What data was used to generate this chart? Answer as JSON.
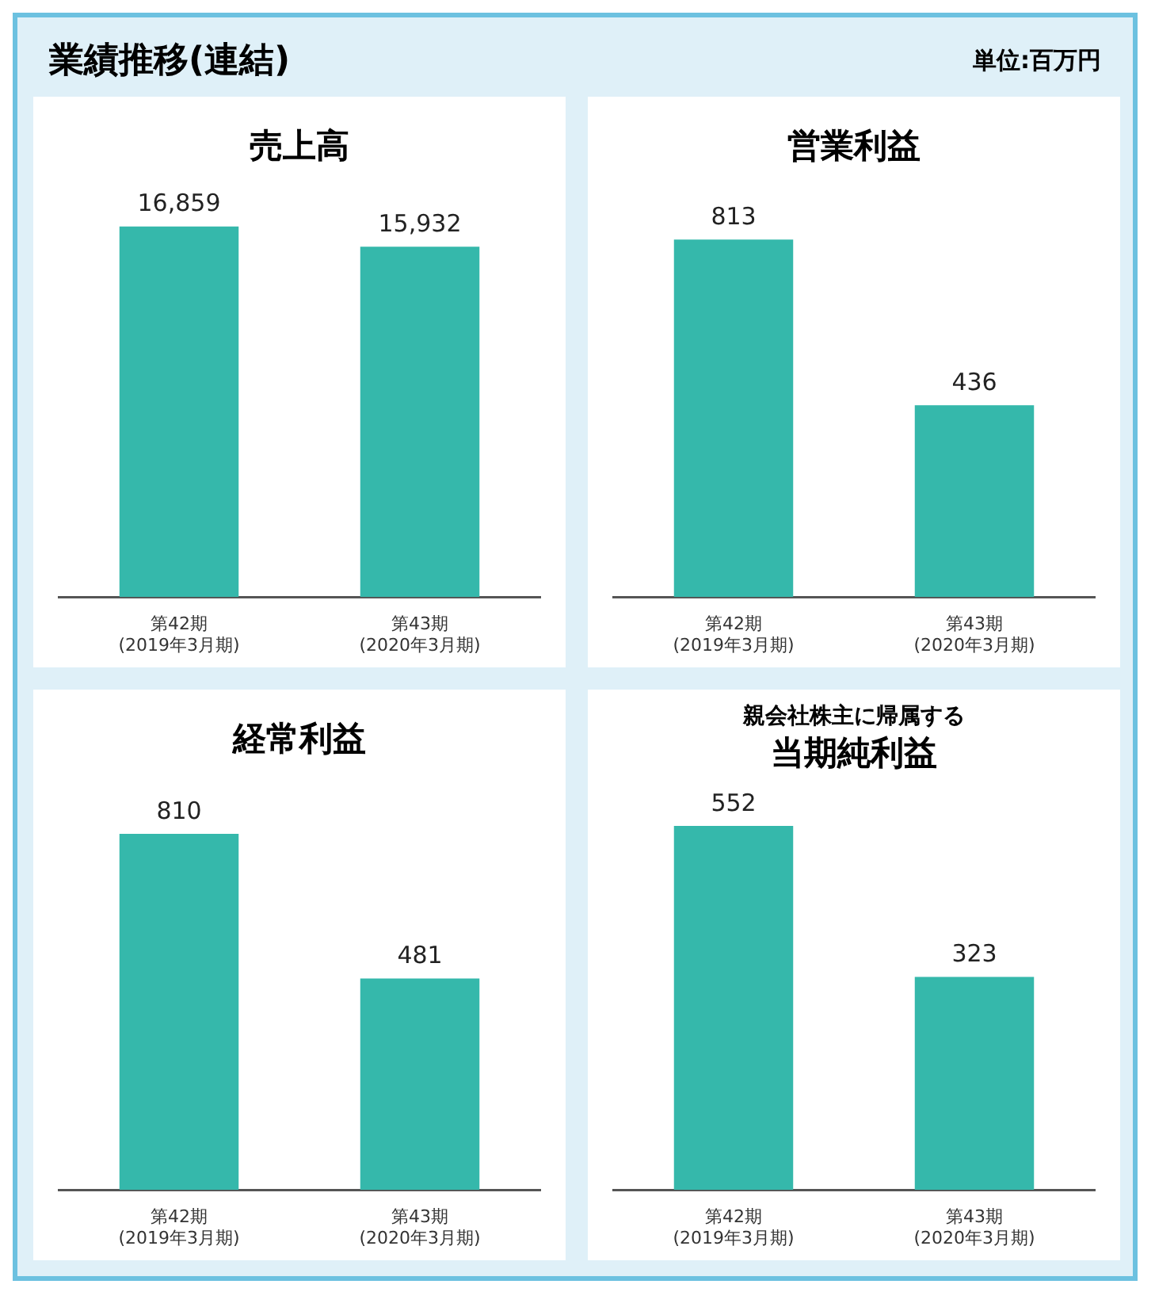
{
  "chart_data": [
    {
      "type": "other",
      "title": "業績推移(連結)",
      "annotations": [
        "単位:百万円"
      ]
    },
    {
      "type": "bar",
      "title": "売上高",
      "categories": [
        "第42期\n(2019年3月期)",
        "第43期\n(2020年3月期)"
      ],
      "values": [
        16859,
        15932
      ],
      "value_labels": [
        "16,859",
        "15,932"
      ],
      "color": "#35b8ab",
      "tick_labels": "x",
      "grid": false,
      "legend": false
    },
    {
      "type": "bar",
      "title": "営業利益",
      "categories": [
        "第42期\n(2019年3月期)",
        "第43期\n(2020年3月期)"
      ],
      "values": [
        813,
        436
      ],
      "color": "#35b8ab",
      "data_labels": true,
      "tick_labels": "x",
      "grid": false,
      "legend": false
    },
    {
      "type": "bar",
      "title": "経常利益",
      "categories": [
        "第42期\n(2019年3月期)",
        "第43期\n(2020年3月期)"
      ],
      "values": [
        810,
        481
      ],
      "color": "#35b8ab",
      "data_labels": true,
      "tick_labels": "x",
      "grid": false,
      "legend": false
    },
    {
      "type": "bar",
      "subtitle": "親会社株主に帰属する",
      "title": "当期純利益",
      "categories": [
        "第42期\n(2019年3月期)",
        "第43期\n(2020年3月期)"
      ],
      "values": [
        552,
        323
      ],
      "color": "#35b8ab",
      "data_labels": true,
      "tick_labels": "x",
      "grid": false,
      "legend": false
    }
  ]
}
